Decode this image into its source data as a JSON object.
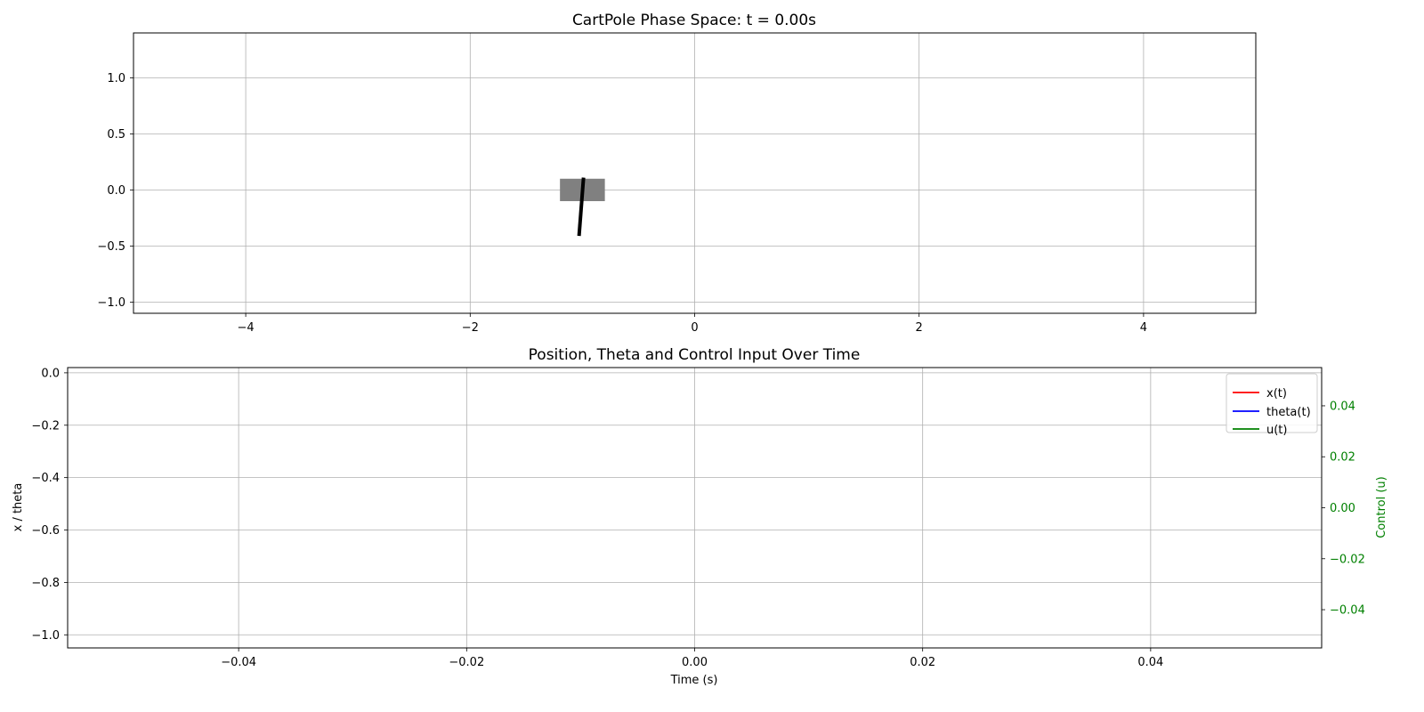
{
  "chart_data": [
    {
      "type": "line",
      "title": "CartPole Phase Space: t = 0.00s",
      "xlim": [
        -5,
        5
      ],
      "ylim": [
        -1.1,
        1.4
      ],
      "x_ticks": [
        -4,
        -2,
        0,
        2,
        4
      ],
      "x_tick_labels": [
        "−4",
        "−2",
        "0",
        "2",
        "4"
      ],
      "y_ticks": [
        1.0,
        0.5,
        0.0,
        -0.5,
        -1.0
      ],
      "y_tick_labels": [
        "1.0",
        "0.5",
        "0.0",
        "−0.5",
        "−1.0"
      ],
      "grid": true,
      "cart": {
        "x_center": -1.0,
        "y_center": 0.0,
        "width": 0.4,
        "height": 0.2,
        "color": "#808080"
      },
      "pole": {
        "x1": -1.03,
        "y1": -0.41,
        "x2": -0.99,
        "y2": 0.11,
        "color": "#000000"
      }
    },
    {
      "type": "line",
      "title": "Position, Theta and Control Input Over Time",
      "xlabel": "Time (s)",
      "ylabel": "x / theta",
      "y2label": "Control (u)",
      "y2_color": "#008000",
      "xlim": [
        -0.055,
        0.055
      ],
      "ylim": [
        -1.05,
        0.02
      ],
      "y2lim": [
        -0.055,
        0.055
      ],
      "x_ticks": [
        -0.04,
        -0.02,
        0.0,
        0.02,
        0.04
      ],
      "x_tick_labels": [
        "−0.04",
        "−0.02",
        "0.00",
        "0.02",
        "0.04"
      ],
      "y_ticks": [
        0.0,
        -0.2,
        -0.4,
        -0.6,
        -0.8,
        -1.0
      ],
      "y_tick_labels": [
        "0.0",
        "−0.2",
        "−0.4",
        "−0.6",
        "−0.8",
        "−1.0"
      ],
      "y2_ticks": [
        0.04,
        0.02,
        0.0,
        -0.02,
        -0.04
      ],
      "y2_tick_labels": [
        "0.04",
        "0.02",
        "0.00",
        "−0.02",
        "−0.04"
      ],
      "grid": true,
      "legend_position": "top-right",
      "series": [
        {
          "name": "x(t)",
          "color": "#ff0000",
          "x": [],
          "y": []
        },
        {
          "name": "theta(t)",
          "color": "#0000ff",
          "x": [],
          "y": []
        },
        {
          "name": "u(t)",
          "color": "#008000",
          "axis": "right",
          "x": [],
          "y": []
        }
      ]
    }
  ]
}
